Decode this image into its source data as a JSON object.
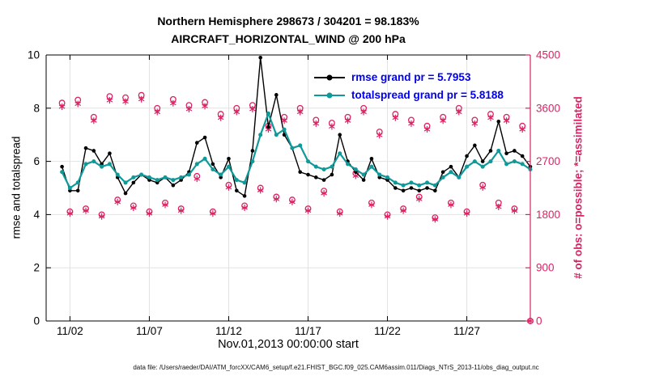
{
  "colors": {
    "rmse": "#000000",
    "totalspread": "#0f9999",
    "obs": "#dd2264",
    "legend_text": "#0000ee",
    "grid": "#e2e2e2",
    "axis": "#000000"
  },
  "caption": "data file: /Users/raeder/DAI/ATM_forcXX/CAM6_setup/f.e21.FHIST_BGC.f09_025.CAM6assim.011/Diags_NTrS_2013-11/obs_diag_output.nc",
  "chart_data": {
    "type": "line",
    "title": "Northern Hemisphere 298673 / 304201 = 98.183%",
    "subtitle": "AIRCRAFT_HORIZONTAL_WIND @ 200 hPa",
    "xlabel": "Nov.01,2013 00:00:00 start",
    "ylabel_left": "rmse and totalspread",
    "ylabel_right": "# of obs: o=possible; *=assimilated",
    "xlim": [
      -0.5,
      30
    ],
    "ylim_left": [
      0,
      10
    ],
    "ylim_right": [
      0,
      4500
    ],
    "grid": true,
    "legend_position": "inside-top-center",
    "xticks": [
      {
        "value": 1,
        "label": "11/02"
      },
      {
        "value": 6,
        "label": "11/07"
      },
      {
        "value": 11,
        "label": "11/12"
      },
      {
        "value": 16,
        "label": "11/17"
      },
      {
        "value": 21,
        "label": "11/22"
      },
      {
        "value": 26,
        "label": "11/27"
      }
    ],
    "yticks_left": [
      0,
      2,
      4,
      6,
      8,
      10
    ],
    "yticks_right": [
      0,
      900,
      1800,
      2700,
      3600,
      4500
    ],
    "x_days_since_nov1": [
      0.5,
      1,
      1.5,
      2,
      2.5,
      3,
      3.5,
      4,
      4.5,
      5,
      5.5,
      6,
      6.5,
      7,
      7.5,
      8,
      8.5,
      9,
      9.5,
      10,
      10.5,
      11,
      11.5,
      12,
      12.5,
      13,
      13.5,
      14,
      14.5,
      15,
      15.5,
      16,
      16.5,
      17,
      17.5,
      18,
      18.5,
      19,
      19.5,
      20,
      20.5,
      21,
      21.5,
      22,
      22.5,
      23,
      23.5,
      24,
      24.5,
      25,
      25.5,
      26,
      26.5,
      27,
      27.5,
      28,
      28.5,
      29,
      29.5,
      30
    ],
    "series": [
      {
        "name": "rmse",
        "legend": "rmse grand pr = 5.7953",
        "axis": "left",
        "marker": "dot",
        "values": [
          5.8,
          4.9,
          4.9,
          6.5,
          6.4,
          5.9,
          6.3,
          5.4,
          4.8,
          5.2,
          5.5,
          5.3,
          5.2,
          5.4,
          5.1,
          5.3,
          5.6,
          6.7,
          6.9,
          5.9,
          5.4,
          6.1,
          4.9,
          4.7,
          6.4,
          9.9,
          7.3,
          8.5,
          7.0,
          6.5,
          5.6,
          5.5,
          5.4,
          5.3,
          5.5,
          7.0,
          6.0,
          5.6,
          5.3,
          6.1,
          5.4,
          5.3,
          5.0,
          4.9,
          5.0,
          4.9,
          5.0,
          4.9,
          5.6,
          5.8,
          5.4,
          6.2,
          6.6,
          6.0,
          6.4,
          7.5,
          6.3,
          6.4,
          6.2,
          5.8
        ]
      },
      {
        "name": "totalspread",
        "legend": "totalspread grand pr = 5.8188",
        "axis": "left",
        "marker": "dot",
        "values": [
          5.6,
          5.0,
          5.2,
          5.9,
          6.0,
          5.8,
          5.9,
          5.5,
          5.2,
          5.4,
          5.5,
          5.4,
          5.3,
          5.4,
          5.3,
          5.4,
          5.5,
          5.9,
          6.1,
          5.7,
          5.5,
          5.8,
          5.3,
          5.2,
          6.0,
          7.0,
          7.8,
          7.0,
          7.2,
          6.5,
          6.6,
          6.0,
          5.8,
          5.7,
          5.8,
          6.3,
          5.9,
          5.7,
          5.5,
          5.8,
          5.5,
          5.4,
          5.2,
          5.1,
          5.2,
          5.1,
          5.2,
          5.1,
          5.4,
          5.6,
          5.4,
          5.8,
          6.0,
          5.8,
          6.0,
          6.4,
          5.9,
          6.0,
          5.9,
          5.7
        ]
      },
      {
        "name": "possible_obs",
        "legend": "o=possible",
        "axis": "right",
        "marker": "circle",
        "values": [
          3690,
          1850,
          3740,
          1900,
          3450,
          1800,
          3800,
          2050,
          3780,
          1950,
          3820,
          1850,
          3600,
          2000,
          3750,
          1900,
          3650,
          2450,
          3700,
          1850,
          3500,
          2300,
          3600,
          1950,
          3650,
          2250,
          3300,
          2100,
          3450,
          2050,
          3600,
          1900,
          3400,
          2200,
          3350,
          1850,
          3450,
          2500,
          3600,
          2000,
          3200,
          1800,
          3500,
          1900,
          3400,
          2100,
          3300,
          1750,
          3450,
          2000,
          3600,
          1850,
          3400,
          2300,
          3500,
          2000,
          3450,
          1900,
          3300,
          0
        ]
      },
      {
        "name": "assimilated_obs",
        "legend": "*=assimilated",
        "axis": "right",
        "marker": "asterisk",
        "values": [
          3624,
          1817,
          3673,
          1866,
          3388,
          1768,
          3732,
          2013,
          3712,
          1915,
          3751,
          1817,
          3535,
          1964,
          3683,
          1866,
          3584,
          2406,
          3633,
          1817,
          3437,
          2259,
          3535,
          1915,
          3584,
          2210,
          3241,
          2062,
          3388,
          2013,
          3535,
          1866,
          3339,
          2160,
          3290,
          1817,
          3388,
          2455,
          3535,
          1964,
          3142,
          1768,
          3437,
          1866,
          3339,
          2062,
          3241,
          1719,
          3388,
          1964,
          3535,
          1817,
          3339,
          2259,
          3437,
          1929,
          3388,
          1866,
          3241,
          0
        ]
      }
    ]
  }
}
